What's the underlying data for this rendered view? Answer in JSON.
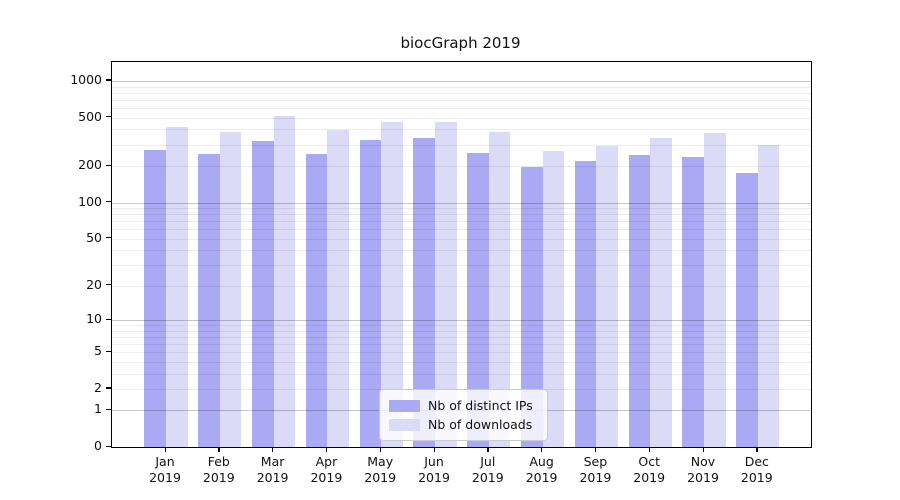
{
  "chart": {
    "title": "biocGraph 2019"
  },
  "chart_data": {
    "type": "bar",
    "title": "biocGraph 2019",
    "xlabel": "",
    "ylabel": "",
    "y_scale": "log1p",
    "ylim": [
      0,
      1430
    ],
    "yticks": [
      0,
      1,
      2,
      5,
      10,
      20,
      50,
      100,
      200,
      500,
      1000
    ],
    "grid": true,
    "legend_position": "lower center",
    "year": "2019",
    "categories": [
      "Jan",
      "Feb",
      "Mar",
      "Apr",
      "May",
      "Jun",
      "Jul",
      "Aug",
      "Sep",
      "Oct",
      "Nov",
      "Dec"
    ],
    "series": [
      {
        "name": "Nb of distinct IPs",
        "color": "#a9a9f4",
        "values": [
          270,
          253,
          321,
          250,
          326,
          339,
          255,
          198,
          221,
          246,
          238,
          174
        ]
      },
      {
        "name": "Nb of downloads",
        "color": "#dbdbf8",
        "values": [
          420,
          384,
          516,
          394,
          461,
          464,
          382,
          268,
          293,
          343,
          377,
          297
        ]
      }
    ]
  }
}
